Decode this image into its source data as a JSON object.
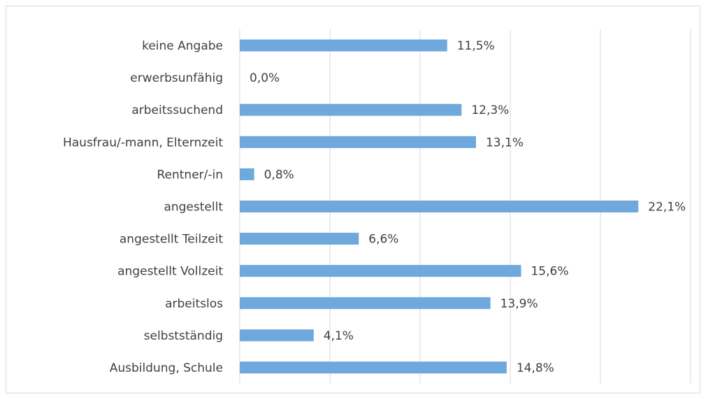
{
  "chart_data": {
    "type": "bar",
    "orientation": "horizontal",
    "categories": [
      "keine Angabe",
      "erwerbsunfähig",
      "arbeitssuchend",
      "Hausfrau/-mann, Elternzeit",
      "Rentner/-in",
      "angestellt",
      "angestellt Teilzeit",
      "angestellt Vollzeit",
      "arbeitslos",
      "selbstständig",
      "Ausbildung, Schule"
    ],
    "values": [
      11.5,
      0.0,
      12.3,
      13.1,
      0.8,
      22.1,
      6.6,
      15.6,
      13.9,
      4.1,
      14.8
    ],
    "value_labels": [
      "11,5%",
      "0,0%",
      "12,3%",
      "13,1%",
      "0,8%",
      "22,1%",
      "6,6%",
      "15,6%",
      "13,9%",
      "4,1%",
      "14,8%"
    ],
    "color": "#6fa8dc",
    "xlim": [
      0,
      25
    ],
    "xticks": [
      0,
      5,
      10,
      15,
      20,
      25
    ],
    "grid": true
  }
}
